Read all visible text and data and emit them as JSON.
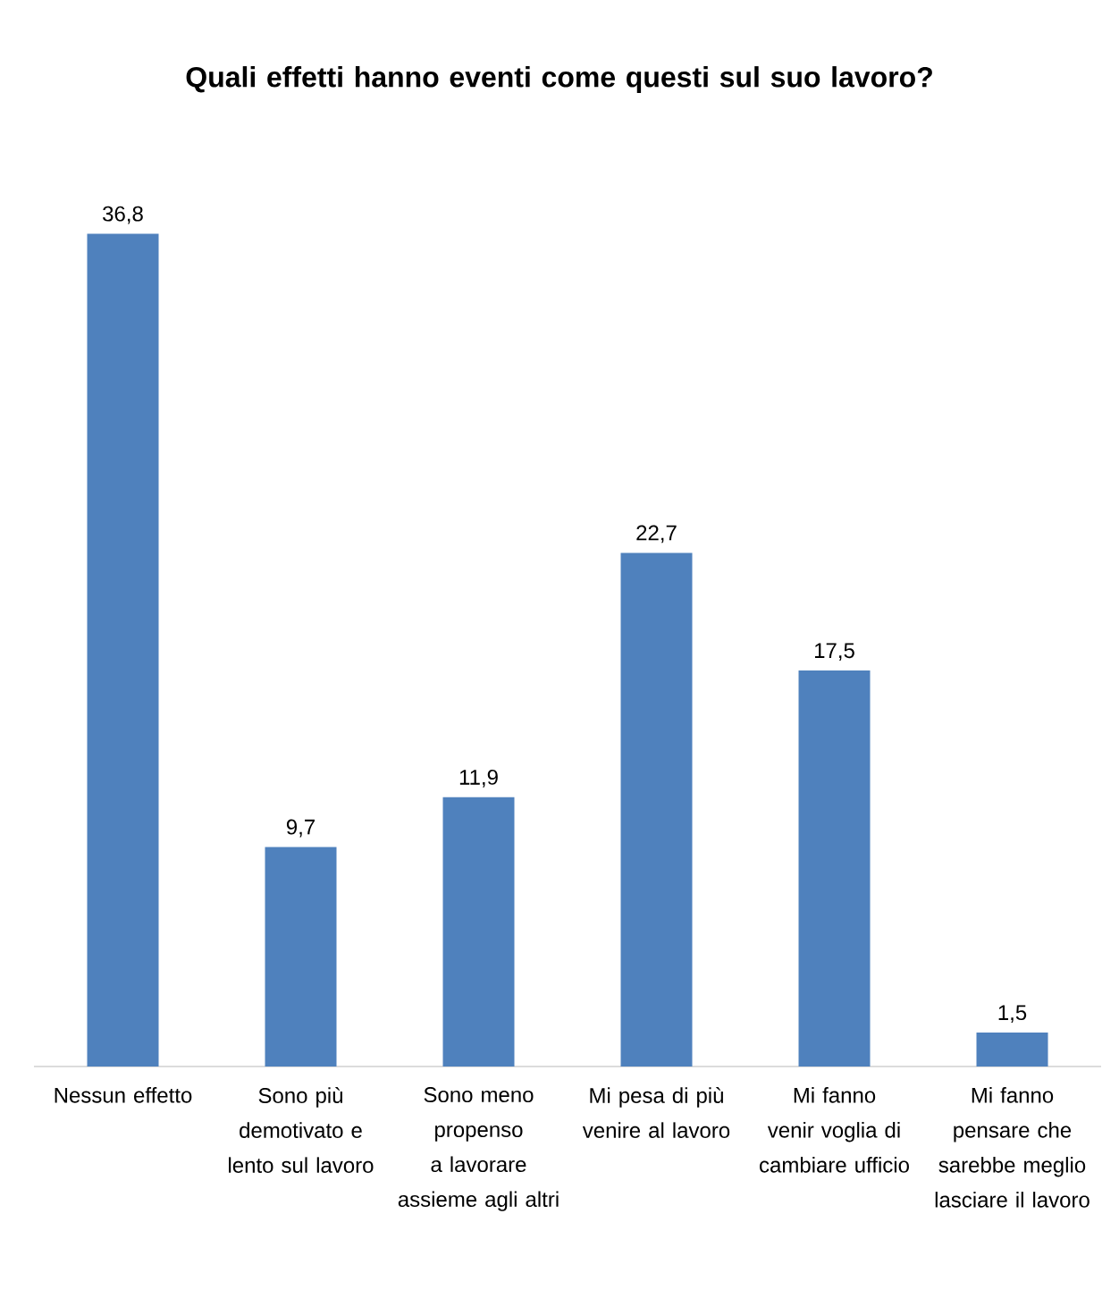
{
  "chart_data": {
    "type": "bar",
    "title": "Quali effetti hanno eventi come questi sul suo lavoro?",
    "categories": [
      "Nessun effetto",
      "Sono più demotivato e lento sul lavoro",
      "Sono meno propenso a lavorare assieme agli altri",
      "Mi pesa di più venire al lavoro",
      "Mi fanno venir voglia di cambiare ufficio",
      "Mi fanno pensare che sarebbe meglio lasciare il lavoro"
    ],
    "values": [
      36.8,
      9.7,
      11.9,
      22.7,
      17.5,
      1.5
    ],
    "value_labels": [
      "36,8",
      "9,7",
      "11,9",
      "22,7",
      "17,5",
      "1,5"
    ],
    "color": "#4f81bd"
  }
}
